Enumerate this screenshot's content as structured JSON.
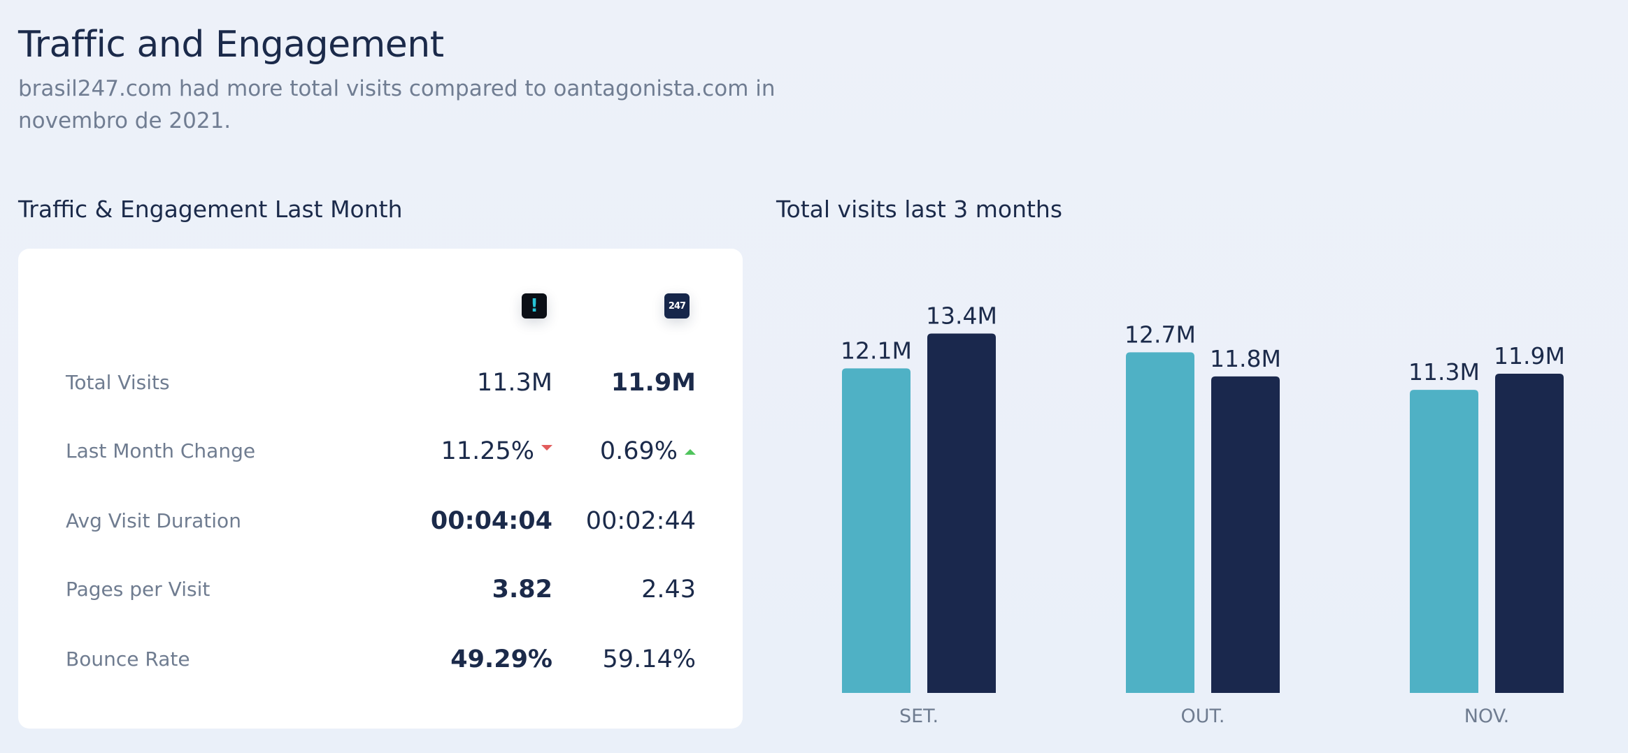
{
  "header": {
    "title": "Traffic and Engagement",
    "subtitle": "brasil247.com had more total visits compared to oantagonista.com in novembro de 2021."
  },
  "engagement": {
    "section_title": "Traffic & Engagement Last Month",
    "sites": [
      {
        "name": "oantagonista.com",
        "icon": "exclamation-logo-icon",
        "glyph": "!",
        "color": "#4fb1c5"
      },
      {
        "name": "brasil247.com",
        "icon": "brasil247-logo-icon",
        "glyph": "247",
        "color": "#1a284d"
      }
    ],
    "metrics": [
      {
        "label": "Total Visits",
        "a": "11.3M",
        "b": "11.9M",
        "winner": "b"
      },
      {
        "label": "Last Month Change",
        "a": "11.25%",
        "a_trend": "down",
        "b": "0.69%",
        "b_trend": "up",
        "winner": ""
      },
      {
        "label": "Avg Visit Duration",
        "a": "00:04:04",
        "b": "00:02:44",
        "winner": "a"
      },
      {
        "label": "Pages per Visit",
        "a": "3.82",
        "b": "2.43",
        "winner": "a"
      },
      {
        "label": "Bounce Rate",
        "a": "49.29%",
        "b": "59.14%",
        "winner": "a"
      }
    ]
  },
  "chart_data": {
    "type": "bar",
    "title": "Total visits last 3 months",
    "categories": [
      "SET.",
      "OUT.",
      "NOV."
    ],
    "series": [
      {
        "name": "oantagonista.com",
        "color": "#4fb1c5",
        "values": [
          12.1,
          12.7,
          11.3
        ],
        "labels": [
          "12.1M",
          "12.7M",
          "11.3M"
        ]
      },
      {
        "name": "brasil247.com",
        "color": "#1a284d",
        "values": [
          13.4,
          11.8,
          11.9
        ],
        "labels": [
          "13.4M",
          "11.8M",
          "11.9M"
        ]
      }
    ],
    "unit": "M",
    "ylim": [
      0,
      15
    ],
    "xlabel": "",
    "ylabel": "",
    "grid": false
  }
}
